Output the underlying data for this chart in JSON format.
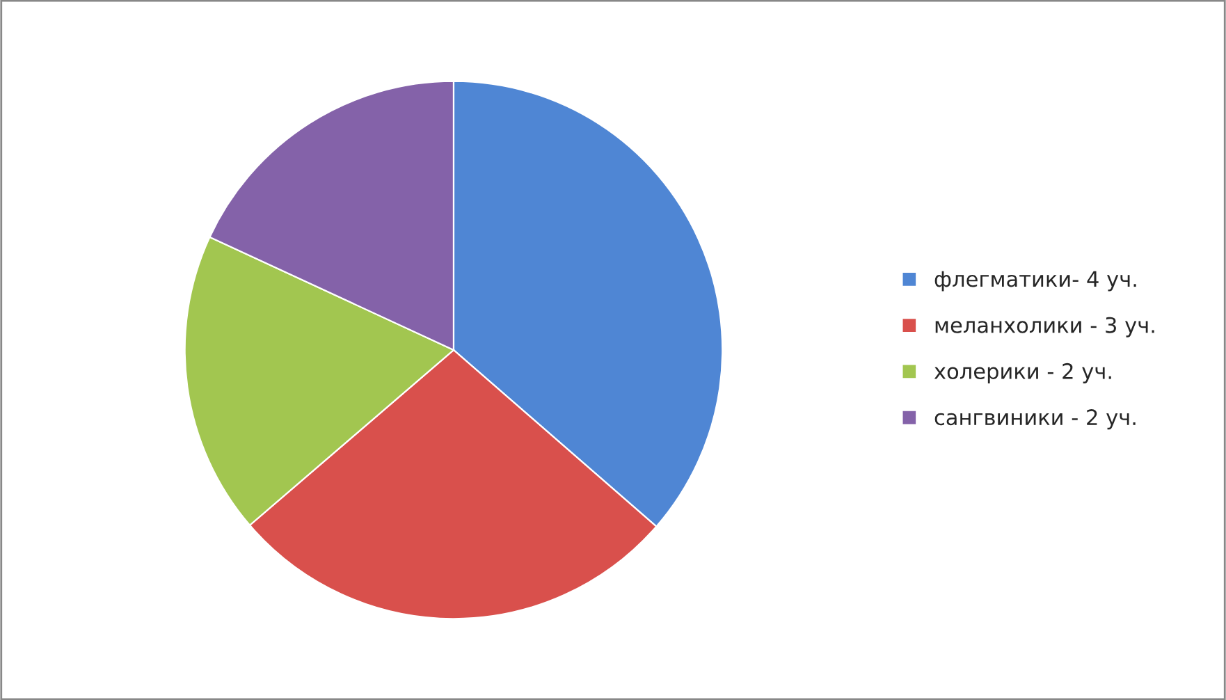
{
  "chart_data": {
    "type": "pie",
    "categories": [
      "флегматики- 4 уч.",
      "меланхолики - 3 уч.",
      "холерики - 2 уч.",
      "сангвиники - 2 уч."
    ],
    "values": [
      36.4,
      27.3,
      18.2,
      18.1
    ],
    "colors": [
      "#4f86d4",
      "#d9504c",
      "#a2c650",
      "#8462a9"
    ],
    "legend": "right"
  }
}
